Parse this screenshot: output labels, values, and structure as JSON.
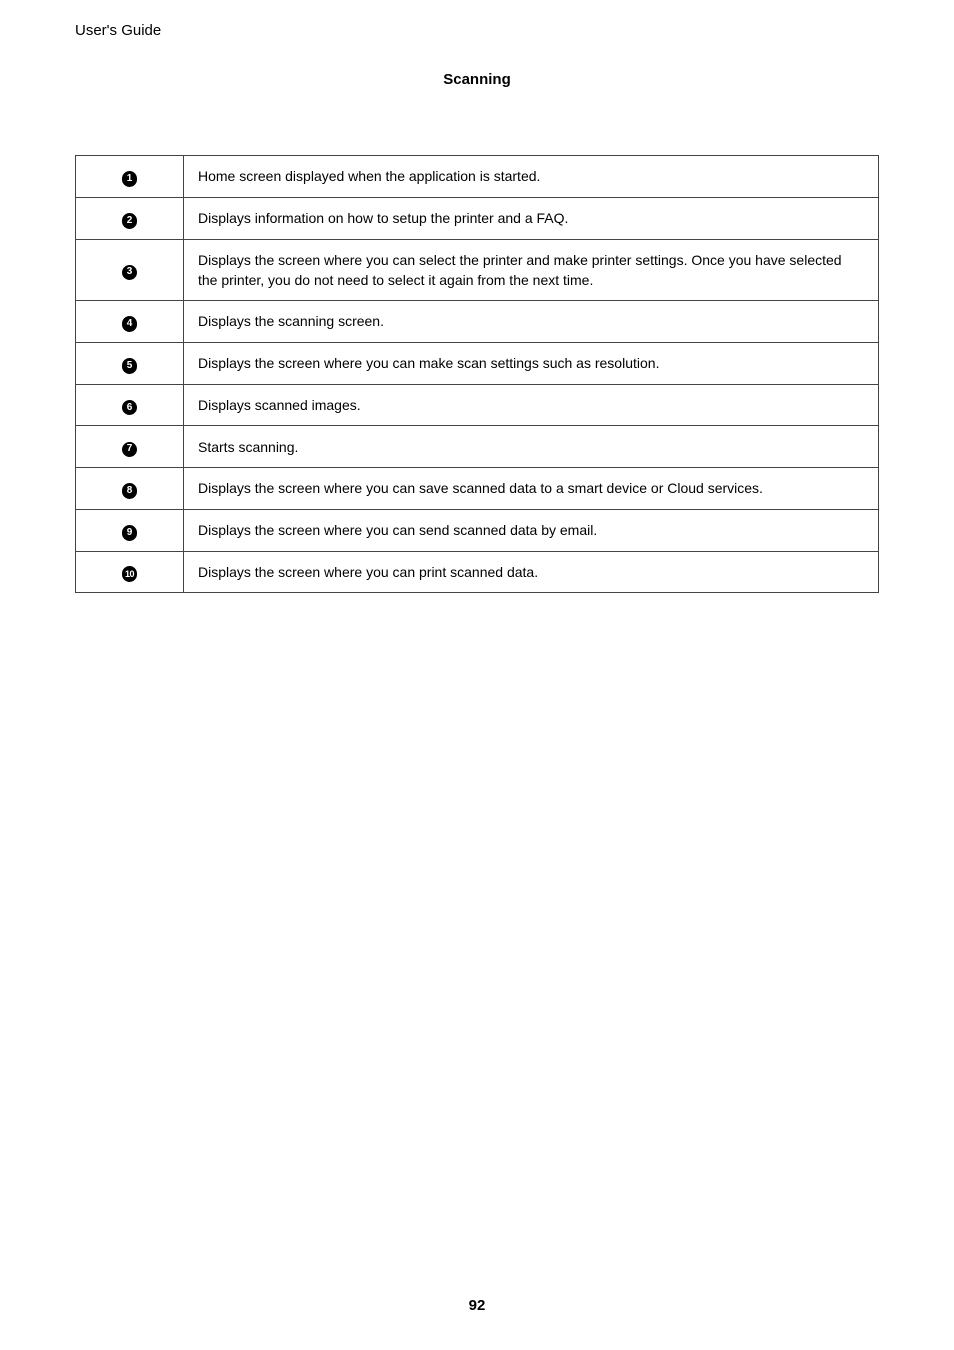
{
  "header": {
    "title": "User's Guide"
  },
  "section": {
    "title": "Scanning"
  },
  "table": {
    "border_color": "#444444",
    "background_color": "#ffffff",
    "text_color": "#000000",
    "font_size": 14,
    "num_badge": {
      "bg_color": "#000000",
      "text_color": "#ffffff",
      "diameter": 15.5,
      "font_size": 10
    },
    "rows": [
      {
        "num": "1",
        "desc": "Home screen displayed when the application is started."
      },
      {
        "num": "2",
        "desc": "Displays information on how to setup the printer and a FAQ."
      },
      {
        "num": "3",
        "desc": "Displays the screen where you can select the printer and make printer settings. Once you have selected the printer, you do not need to select it again from the next time."
      },
      {
        "num": "4",
        "desc": "Displays the scanning screen."
      },
      {
        "num": "5",
        "desc": "Displays the screen where you can make scan settings such as resolution."
      },
      {
        "num": "6",
        "desc": "Displays scanned images."
      },
      {
        "num": "7",
        "desc": "Starts scanning."
      },
      {
        "num": "8",
        "desc": "Displays the screen where you can save scanned data to a smart device or Cloud services."
      },
      {
        "num": "9",
        "desc": "Displays the screen where you can send scanned data by email."
      },
      {
        "num": "10",
        "desc": "Displays the screen where you can print scanned data."
      }
    ]
  },
  "footer": {
    "page_number": "92"
  }
}
